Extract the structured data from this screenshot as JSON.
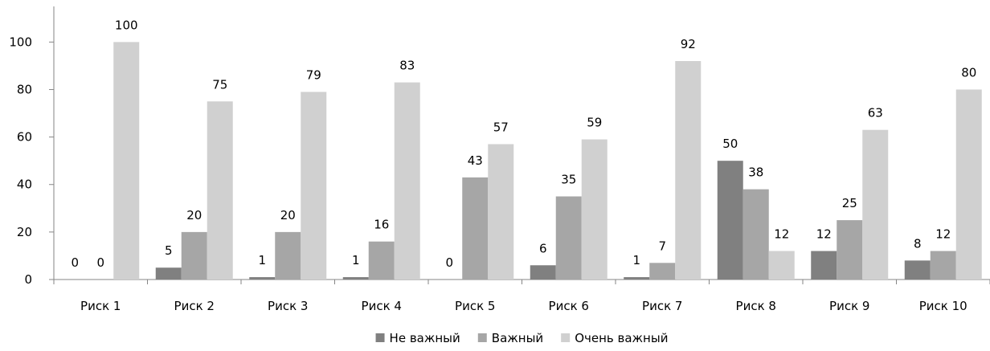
{
  "chart_data": {
    "type": "bar",
    "categories": [
      "Риск 1",
      "Риск 2",
      "Риск 3",
      "Риск 4",
      "Риск 5",
      "Риск 6",
      "Риск 7",
      "Риск 8",
      "Риск 9",
      "Риск 10"
    ],
    "series": [
      {
        "name": "Не важный",
        "color": "#808080",
        "values": [
          0,
          5,
          1,
          1,
          0,
          6,
          1,
          50,
          12,
          8
        ]
      },
      {
        "name": "Важный",
        "color": "#a6a6a6",
        "values": [
          0,
          20,
          20,
          16,
          43,
          35,
          7,
          38,
          25,
          12
        ]
      },
      {
        "name": "Очень важный",
        "color": "#d0d0d0",
        "values": [
          100,
          75,
          79,
          83,
          57,
          59,
          92,
          12,
          63,
          80
        ]
      }
    ],
    "data_labels": [
      [
        "0",
        "5",
        "1",
        "1",
        "0",
        "6",
        "1",
        "50",
        "12",
        "8"
      ],
      [
        "0",
        "20",
        "20",
        "16",
        "43",
        "35",
        "7",
        "38",
        "25",
        "12"
      ],
      [
        "100",
        "75",
        "79",
        "83",
        "57",
        "59",
        "92",
        "12",
        "63",
        "80"
      ]
    ],
    "y_ticks": [
      "0",
      "20",
      "40",
      "60",
      "80",
      "100"
    ],
    "ylim": [
      0,
      115
    ],
    "legend_position": "bottom",
    "grid": false
  }
}
